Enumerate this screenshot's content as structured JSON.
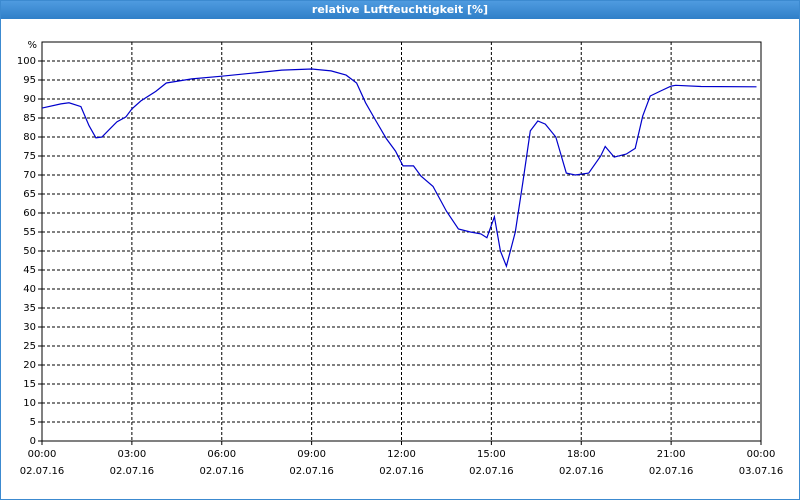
{
  "chart_data": {
    "type": "line",
    "title": "relative Luftfeuchtigkeit [%]",
    "y_label": "%",
    "xlim": [
      0,
      24
    ],
    "xticks": [
      {
        "value": 0,
        "label": "00:00"
      },
      {
        "value": 3,
        "label": "03:00"
      },
      {
        "value": 6,
        "label": "06:00"
      },
      {
        "value": 9,
        "label": "09:00"
      },
      {
        "value": 12,
        "label": "12:00"
      },
      {
        "value": 15,
        "label": "15:00"
      },
      {
        "value": 18,
        "label": "18:00"
      },
      {
        "value": 21,
        "label": "21:00"
      },
      {
        "value": 24,
        "label": "00:00"
      }
    ],
    "xtick_dates": [
      "02.07.16",
      "02.07.16",
      "02.07.16",
      "02.07.16",
      "02.07.16",
      "02.07.16",
      "02.07.16",
      "02.07.16",
      "03.07.16"
    ],
    "ylim": [
      0,
      105
    ],
    "yticks": [
      0,
      5,
      10,
      15,
      20,
      25,
      30,
      35,
      40,
      45,
      50,
      55,
      60,
      65,
      70,
      75,
      80,
      85,
      90,
      95,
      100
    ],
    "grid": true,
    "series": [
      {
        "name": "relative Luftfeuchtigkeit",
        "color": "#0000cc",
        "x": [
          0,
          0.63,
          0.9,
          1.3,
          1.57,
          1.8,
          2,
          2.5,
          2.8,
          3,
          3.3,
          3.8,
          4.15,
          5,
          6,
          7,
          8,
          9,
          9.65,
          10.15,
          10.5,
          10.8,
          11.15,
          11.5,
          11.8,
          12.05,
          12.4,
          12.65,
          13.05,
          13.5,
          13.9,
          14.3,
          14.65,
          14.85,
          15.1,
          15.3,
          15.5,
          15.8,
          16.05,
          16.3,
          16.55,
          16.8,
          17.15,
          17.5,
          17.8,
          18.25,
          18.65,
          18.8,
          19.1,
          19.5,
          19.8,
          20.05,
          20.3,
          20.65,
          21,
          21.15,
          22,
          23.85
        ],
        "values": [
          87.6,
          88.7,
          89,
          88,
          83,
          79.8,
          80,
          84,
          85.3,
          87.4,
          89.5,
          92,
          94.2,
          95.3,
          96,
          96.8,
          97.6,
          97.9,
          97.4,
          96.3,
          94.2,
          89,
          84.2,
          79.5,
          76.3,
          72.4,
          72.4,
          69.7,
          67,
          60.5,
          55.8,
          55,
          54.5,
          53.5,
          59,
          50,
          46,
          55,
          68,
          81.6,
          84.2,
          83.4,
          80,
          70.5,
          70,
          70.5,
          75,
          77.5,
          74.7,
          75.5,
          77,
          85.5,
          90.8,
          92.1,
          93.4,
          93.6,
          93.3,
          93.2
        ]
      }
    ]
  }
}
